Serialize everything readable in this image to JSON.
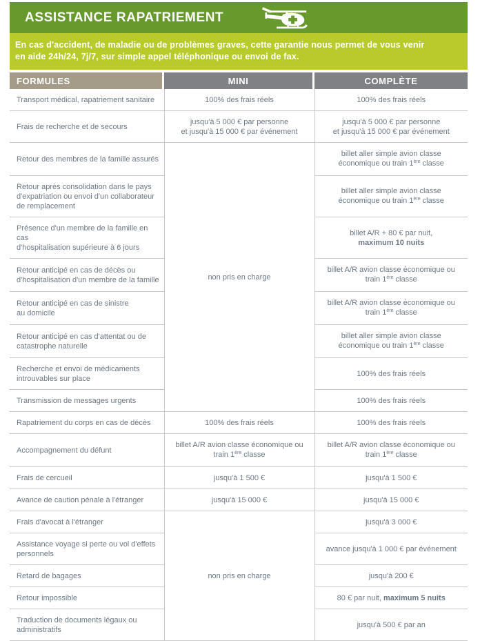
{
  "header": {
    "title": "ASSISTANCE RAPATRIEMENT",
    "icon": "helicopter-medical-icon",
    "description": "En cas d'accident, de maladie ou de problèmes graves, cette garantie nous permet de vous venir\nen aide 24h/24, 7j/7, sur simple appel téléphonique ou envoi de fax."
  },
  "colors": {
    "header_green": "#68992D",
    "banner_green": "#B9CA2B",
    "formules_taupe": "#A49C89",
    "column_gray": "#808184",
    "border_gray": "#C9C9C9",
    "body_text": "#6B7885"
  },
  "table": {
    "columns": [
      "FORMULES",
      "MINI",
      "COMPLÈTE"
    ],
    "rows": [
      {
        "label": "Transport médical, rapatriement sanitaire",
        "mini": "100% des frais réels",
        "complete": "100% des frais réels"
      },
      {
        "label": "Frais de recherche et de secours",
        "mini": "jusqu'à 5 000 € par personne\net jusqu'à 15 000 € par événement",
        "complete": "jusqu'à 5 000 € par personne\net jusqu'à 15 000 € par événement"
      },
      {
        "label": "Retour des membres de la famille assurés",
        "mini": "non pris en charge",
        "mini_rowspan": 8,
        "complete": "billet aller simple avion classe\néconomique ou train 1^ère^ classe"
      },
      {
        "label": "Retour après consolidation dans le pays\nd'expatriation ou envoi d'un collaborateur\nde remplacement",
        "complete": "billet aller simple avion classe\néconomique ou train 1^ère^ classe"
      },
      {
        "label": "Présence d'un membre de la famille en cas\nd'hospitalisation supérieure à 6 jours",
        "complete": "billet A/R + 80 € par nuit,\n**maximum 10 nuits**"
      },
      {
        "label": "Retour anticipé en cas de décès ou\nd'hospitalisation d'un membre de la famille",
        "complete": "billet A/R avion classe économique ou\ntrain 1^ère^ classe"
      },
      {
        "label": "Retour anticipé en cas de sinistre\nau domicile",
        "complete": "billet A/R avion classe économique ou\ntrain 1^ère^ classe"
      },
      {
        "label": "Retour anticipé en cas d'attentat ou de\ncatastrophe naturelle",
        "complete": "billet aller simple avion classe\néconomique ou train 1^ère^ classe"
      },
      {
        "label": "Recherche et envoi de médicaments\nintrouvables sur place",
        "complete": "100% des frais réels"
      },
      {
        "label": "Transmission de messages urgents",
        "complete": "100% des frais réels"
      },
      {
        "label": "Rapatriement du corps en cas de décès",
        "mini": "100% des frais réels",
        "complete": "100% des frais réels"
      },
      {
        "label": "Accompagnement du défunt",
        "mini": "billet A/R avion classe économique ou\ntrain 1^ère^ classe",
        "complete": "billet A/R avion classe économique ou\ntrain 1^ère^ classe"
      },
      {
        "label": "Frais de cercueil",
        "mini": "jusqu'à 1 500 €",
        "complete": "jusqu'à 1 500 €"
      },
      {
        "label": "Avance de caution pénale à l'étranger",
        "mini": "jusqu'à 15 000 €",
        "complete": "jusqu'à 15 000 €"
      },
      {
        "label": "Frais d'avocat à l'étranger",
        "mini": "non pris en charge",
        "mini_rowspan": 5,
        "complete": "jusqu'à 3 000 €"
      },
      {
        "label": "Assistance voyage si perte ou vol d'effets\npersonnels",
        "complete": "avance jusqu'à 1 000 € par événement"
      },
      {
        "label": "Retard de bagages",
        "complete": "jusqu'à 200 €"
      },
      {
        "label": "Retour impossible",
        "complete": "80 € par nuit, **maximum 5 nuits**"
      },
      {
        "label": "Traduction de documents légaux ou\nadministratifs",
        "complete": "jusqu'à 500 € par an"
      }
    ]
  }
}
